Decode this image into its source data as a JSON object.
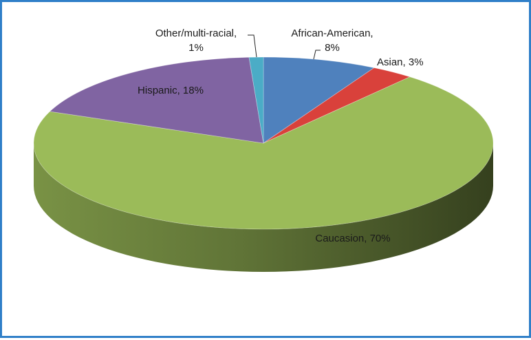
{
  "chart_data": {
    "type": "pie",
    "title": "",
    "slices": [
      {
        "label": "African-American, 8%",
        "lines": [
          "African-American,",
          "8%"
        ],
        "value": 8,
        "color": "#4f81bd"
      },
      {
        "label": "Asian, 3%",
        "lines": [
          "Asian, 3%"
        ],
        "value": 3,
        "color": "#d9413b"
      },
      {
        "label": "Caucasion, 70%",
        "lines": [
          "Caucasion, 70%"
        ],
        "value": 70,
        "color": "#9bbb59"
      },
      {
        "label": "Hispanic, 18%",
        "lines": [
          "Hispanic, 18%"
        ],
        "value": 18,
        "color": "#8064a2"
      },
      {
        "label": "Other/multi-racial, 1%",
        "lines": [
          "Other/multi-racial,",
          "1%"
        ],
        "value": 1,
        "color": "#4bacc6"
      }
    ],
    "legend": "none",
    "style": "3d"
  }
}
